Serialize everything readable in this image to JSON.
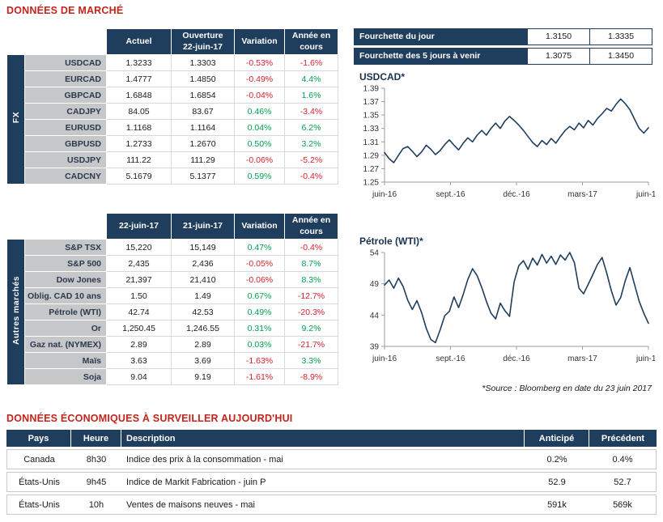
{
  "colors": {
    "navy": "#1f3d5c",
    "title_red": "#c3251c",
    "negative_red": "#d91e2a",
    "positive_green": "#00a050",
    "label_gray": "#c6c7c9"
  },
  "market_section": {
    "title": "DONNÉES DE MARCHÉ"
  },
  "fx_table": {
    "group_label": "FX",
    "headers": [
      "Actuel",
      "Ouverture\n22-juin-17",
      "Variation",
      "Année en\ncours"
    ],
    "rows": [
      {
        "label": "USDCAD",
        "values": [
          "1.3233",
          "1.3303",
          "-0.53%",
          "-1.6%"
        ]
      },
      {
        "label": "EURCAD",
        "values": [
          "1.4777",
          "1.4850",
          "-0.49%",
          "4.4%"
        ]
      },
      {
        "label": "GBPCAD",
        "values": [
          "1.6848",
          "1.6854",
          "-0.04%",
          "1.6%"
        ]
      },
      {
        "label": "CADJPY",
        "values": [
          "84.05",
          "83.67",
          "0.46%",
          "-3.4%"
        ]
      },
      {
        "label": "EURUSD",
        "values": [
          "1.1168",
          "1.1164",
          "0.04%",
          "6.2%"
        ]
      },
      {
        "label": "GBPUSD",
        "values": [
          "1.2733",
          "1.2670",
          "0.50%",
          "3.2%"
        ]
      },
      {
        "label": "USDJPY",
        "values": [
          "111.22",
          "111.29",
          "-0.06%",
          "-5.2%"
        ]
      },
      {
        "label": "CADCNY",
        "values": [
          "5.1679",
          "5.1377",
          "0.59%",
          "-0.4%"
        ]
      }
    ]
  },
  "markets_table": {
    "group_label": "Autres marchés",
    "headers": [
      "22-juin-17",
      "21-juin-17",
      "Variation",
      "Année en\ncours"
    ],
    "rows": [
      {
        "label": "S&P TSX",
        "values": [
          "15,220",
          "15,149",
          "0.47%",
          "-0.4%"
        ]
      },
      {
        "label": "S&P 500",
        "values": [
          "2,435",
          "2,436",
          "-0.05%",
          "8.7%"
        ]
      },
      {
        "label": "Dow Jones",
        "values": [
          "21,397",
          "21,410",
          "-0.06%",
          "8.3%"
        ]
      },
      {
        "label": "Oblig. CAD 10 ans",
        "values": [
          "1.50",
          "1.49",
          "0.67%",
          "-12.7%"
        ]
      },
      {
        "label": "Pétrole (WTI)",
        "values": [
          "42.74",
          "42.53",
          "0.49%",
          "-20.3%"
        ]
      },
      {
        "label": "Or",
        "values": [
          "1,250.45",
          "1,246.55",
          "0.31%",
          "9.2%"
        ]
      },
      {
        "label": "Gaz nat. (NYMEX)",
        "values": [
          "2.89",
          "2.89",
          "0.03%",
          "-21.7%"
        ]
      },
      {
        "label": "Maïs",
        "values": [
          "3.63",
          "3.69",
          "-1.63%",
          "3.3%"
        ]
      },
      {
        "label": "Soja",
        "values": [
          "9.04",
          "9.19",
          "-1.61%",
          "-8.9%"
        ]
      }
    ]
  },
  "range_table": {
    "rows": [
      {
        "label": "Fourchette du jour",
        "low": "1.3150",
        "high": "1.3335"
      },
      {
        "label": "Fourchette des 5 jours à venir",
        "low": "1.3075",
        "high": "1.3450"
      }
    ]
  },
  "chart_data": [
    {
      "type": "line",
      "title": "USDCAD*",
      "x_tick_labels": [
        "juin-16",
        "sept.-16",
        "déc.-16",
        "mars-17",
        "juin-17"
      ],
      "ylim": [
        1.25,
        1.39
      ],
      "ytick_labels": [
        "1.25",
        "1.27",
        "1.29",
        "1.31",
        "1.33",
        "1.35",
        "1.37",
        "1.39"
      ],
      "line_color": "#1f3d5c",
      "grid": false,
      "legend": "none",
      "values": [
        1.294,
        1.285,
        1.279,
        1.29,
        1.3,
        1.303,
        1.296,
        1.288,
        1.295,
        1.305,
        1.299,
        1.291,
        1.297,
        1.306,
        1.313,
        1.305,
        1.298,
        1.308,
        1.316,
        1.31,
        1.32,
        1.327,
        1.32,
        1.33,
        1.338,
        1.33,
        1.341,
        1.348,
        1.342,
        1.335,
        1.327,
        1.318,
        1.309,
        1.303,
        1.312,
        1.306,
        1.315,
        1.308,
        1.318,
        1.327,
        1.333,
        1.328,
        1.338,
        1.331,
        1.342,
        1.335,
        1.345,
        1.352,
        1.36,
        1.356,
        1.366,
        1.374,
        1.367,
        1.358,
        1.344,
        1.33,
        1.323,
        1.331
      ]
    },
    {
      "type": "line",
      "title": "Pétrole (WTI)*",
      "x_tick_labels": [
        "juin-16",
        "sept.-16",
        "déc.-16",
        "mars-17",
        "juin-17"
      ],
      "ylim": [
        39,
        54
      ],
      "ytick_labels": [
        "39",
        "44",
        "49",
        "54"
      ],
      "line_color": "#1f3d5c",
      "grid": false,
      "legend": "none",
      "values": [
        48.8,
        49.6,
        48.3,
        49.9,
        48.6,
        46.4,
        44.9,
        46.3,
        44.4,
        41.9,
        40.1,
        39.6,
        41.6,
        43.9,
        44.6,
        46.9,
        45.2,
        47.3,
        49.7,
        51.4,
        50.3,
        48.4,
        46.2,
        44.3,
        43.4,
        45.9,
        44.7,
        43.8,
        49.3,
        51.9,
        52.7,
        51.3,
        53.1,
        52.0,
        53.7,
        52.3,
        53.4,
        52.1,
        53.6,
        52.8,
        54.0,
        52.4,
        48.3,
        47.4,
        48.9,
        50.5,
        52.1,
        53.2,
        50.7,
        47.9,
        45.6,
        46.8,
        49.5,
        51.6,
        48.9,
        46.2,
        44.3,
        42.7
      ]
    }
  ],
  "source_note": "*Source : Bloomberg en date du  23 juin 2017",
  "econ_section": {
    "title": "DONNÉES ÉCONOMIQUES À SURVEILLER AUJOURD'HUI",
    "headers": [
      "Pays",
      "Heure",
      "Description",
      "Anticipé",
      "Précédent"
    ],
    "rows": [
      {
        "country": "Canada",
        "time": "8h30",
        "description": "Indice des prix à la consommation - mai",
        "expected": "0.2%",
        "previous": "0.4%"
      },
      {
        "country": "États-Unis",
        "time": "9h45",
        "description": "Indice de Markit Fabrication - juin P",
        "expected": "52.9",
        "previous": "52.7"
      },
      {
        "country": "États-Unis",
        "time": "10h",
        "description": "Ventes de maisons neuves - mai",
        "expected": "591k",
        "previous": "569k"
      }
    ]
  }
}
